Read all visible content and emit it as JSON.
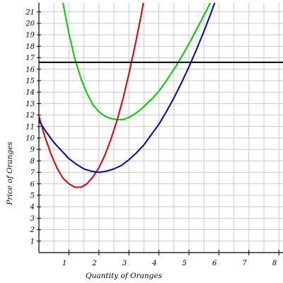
{
  "chart_data": {
    "type": "line",
    "title": "",
    "xlabel": "Quantity of Oranges",
    "ylabel": "Price of Oranges",
    "xlim": [
      0,
      8
    ],
    "ylim": [
      0,
      21
    ],
    "x_ticks": [
      "1",
      "2",
      "3",
      "4",
      "5",
      "6",
      "7",
      "8"
    ],
    "y_ticks": [
      "1",
      "2",
      "3",
      "4",
      "5",
      "6",
      "7",
      "8",
      "9",
      "10",
      "11",
      "12",
      "13",
      "14",
      "15",
      "16",
      "17",
      "18",
      "19",
      "20",
      "21"
    ],
    "grid": true,
    "legend": "none",
    "series": [
      {
        "color": "#00cc00",
        "x": [
          0.8,
          1.0,
          1.2,
          1.4,
          1.6,
          1.8,
          2.0,
          2.2,
          2.4,
          2.6,
          2.8,
          3.0,
          3.2,
          3.4,
          3.6,
          3.8,
          4.0,
          4.2,
          4.4,
          4.6,
          4.8,
          5.0,
          5.2,
          5.4,
          5.6,
          5.8
        ],
        "y": [
          21.8,
          19.1,
          16.9,
          15.2,
          13.9,
          12.9,
          12.3,
          11.9,
          11.7,
          11.6,
          11.6,
          11.8,
          12.1,
          12.5,
          13.0,
          13.5,
          14.1,
          14.8,
          15.6,
          16.4,
          17.3,
          18.2,
          19.2,
          20.2,
          21.2,
          22.3
        ]
      },
      {
        "color": "#dd0000",
        "x": [
          0.0,
          0.2,
          0.4,
          0.6,
          0.8,
          1.0,
          1.2,
          1.4,
          1.6,
          1.8,
          2.0,
          2.2,
          2.4,
          2.6,
          2.8,
          3.0,
          3.2,
          3.4,
          3.6
        ],
        "y": [
          11.9,
          10.1,
          8.6,
          7.4,
          6.5,
          6.0,
          5.7,
          5.7,
          6.0,
          6.6,
          7.4,
          8.5,
          9.9,
          11.5,
          13.4,
          15.6,
          18.0,
          20.6,
          23.5
        ]
      },
      {
        "color": "#0000cc",
        "x": [
          0.0,
          0.25,
          0.5,
          0.75,
          1.0,
          1.25,
          1.5,
          1.75,
          2.0,
          2.25,
          2.5,
          2.75,
          3.0,
          3.25,
          3.5,
          3.75,
          4.0,
          4.25,
          4.5,
          4.75,
          5.0,
          5.25,
          5.5,
          5.75,
          6.0
        ],
        "y": [
          11.5,
          10.5,
          9.6,
          8.9,
          8.2,
          7.7,
          7.3,
          7.1,
          7.0,
          7.1,
          7.3,
          7.6,
          8.1,
          8.7,
          9.4,
          10.3,
          11.2,
          12.3,
          13.5,
          14.8,
          16.2,
          17.7,
          19.3,
          21.0,
          22.8
        ]
      },
      {
        "color": "#000000",
        "x": [
          0,
          8.2
        ],
        "y": [
          16.6,
          16.6
        ]
      }
    ]
  }
}
